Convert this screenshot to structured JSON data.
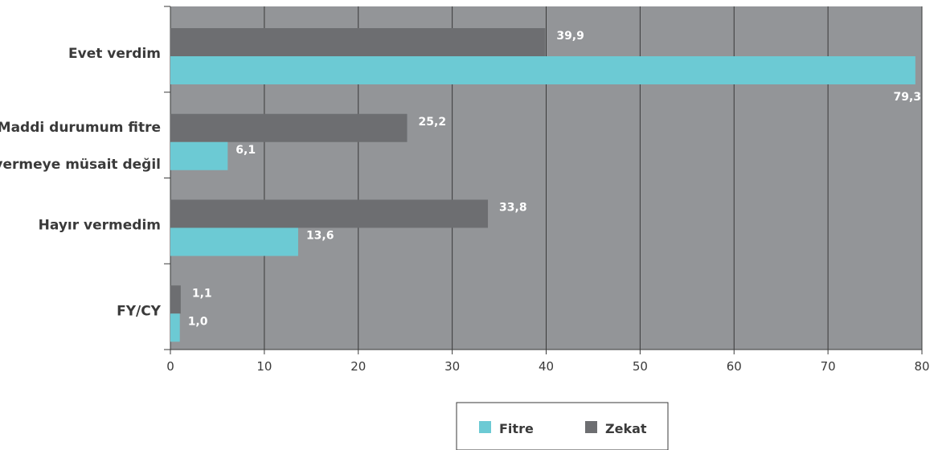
{
  "chart_data": {
    "type": "bar",
    "orientation": "horizontal",
    "categories": [
      [
        "Evet verdim"
      ],
      [
        "Maddi durumum fitre",
        "vermeye müsait değil"
      ],
      [
        "Hayır vermedim"
      ],
      [
        "FY/CY"
      ]
    ],
    "series": [
      {
        "name": "Zekat",
        "values": [
          39.9,
          25.2,
          33.8,
          1.1
        ],
        "labels": [
          "39,9",
          "25,2",
          "33,8",
          "1,1"
        ],
        "color": "#6d6e71"
      },
      {
        "name": "Fitre",
        "values": [
          79.3,
          6.1,
          13.6,
          1.0
        ],
        "labels": [
          "79,3",
          "6,1",
          "13,6",
          "1,0"
        ],
        "color": "#6ccad4"
      }
    ],
    "xlim": [
      0,
      80
    ],
    "xticks": [
      0,
      10,
      20,
      30,
      40,
      50,
      60,
      70,
      80
    ],
    "grid": true,
    "plot_background": "#939598",
    "gridline_color": "#3a3a3a",
    "legend": {
      "position": "bottom-center",
      "items": [
        {
          "name": "Fitre",
          "color": "#6ccad4"
        },
        {
          "name": "Zekat",
          "color": "#6d6e71"
        }
      ]
    }
  }
}
